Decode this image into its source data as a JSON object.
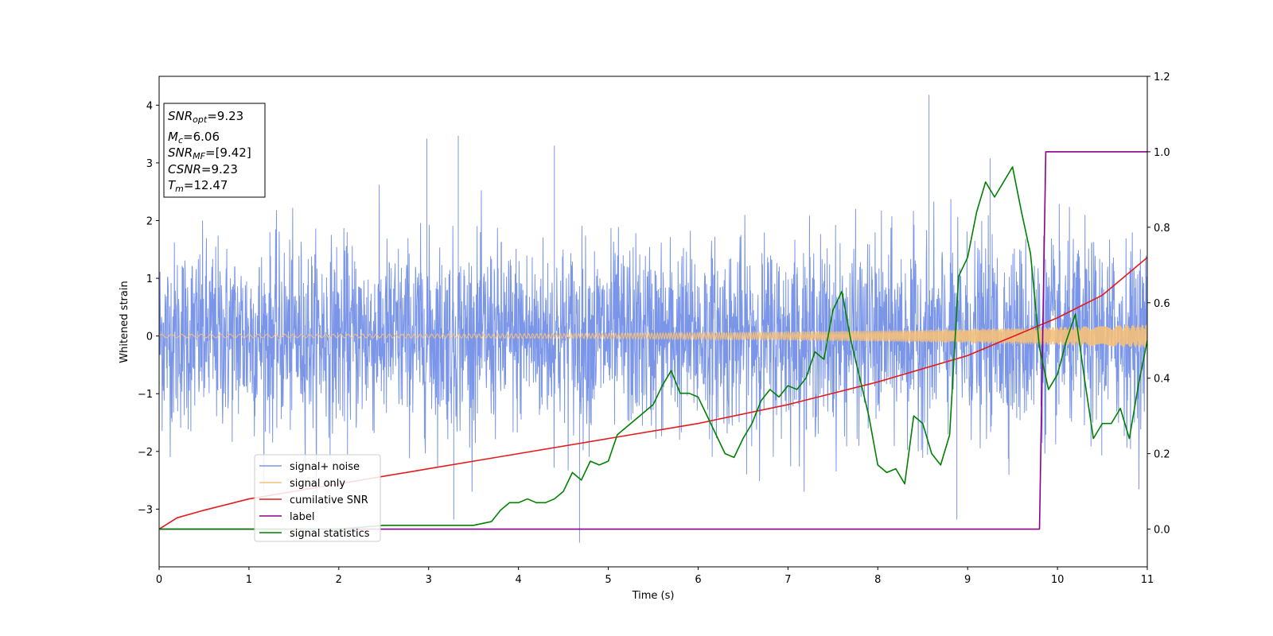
{
  "chart_data": {
    "type": "line",
    "xlabel": "Time (s)",
    "ylabel": "Whitened strain",
    "xlim": [
      0,
      11
    ],
    "ylim_left": [
      -4,
      4.5
    ],
    "ylim_right": [
      -0.1,
      1.2
    ],
    "xticks": [
      "0",
      "1",
      "2",
      "3",
      "4",
      "5",
      "6",
      "7",
      "8",
      "9",
      "10",
      "11"
    ],
    "yticks_left": [
      "−3",
      "−2",
      "−1",
      "0",
      "1",
      "2",
      "3",
      "4"
    ],
    "yticks_right": [
      "0.0",
      "0.2",
      "0.4",
      "0.6",
      "0.8",
      "1.0",
      "1.2"
    ],
    "grid": false,
    "legend_position": "lower-left",
    "annotation": {
      "snr_opt": {
        "base": "SNR",
        "sub": "opt",
        "value": "=9.23"
      },
      "mc": {
        "base": "M",
        "sub": "c",
        "value": "=6.06"
      },
      "snr_mf": {
        "base": "SNR",
        "sub": "MF",
        "value": "=[9.42]"
      },
      "csnr": {
        "base": "CSNR",
        "value": "=9.23"
      },
      "tm": {
        "base": "T",
        "sub": "m",
        "value": "=12.47"
      }
    },
    "series": [
      {
        "name": "signal+ noise",
        "color": "#7b96e8",
        "axis": "left",
        "description_type": "noise",
        "std": 0.8,
        "spikes": [
          [
            8.57,
            4.18
          ],
          [
            4.68,
            -3.58
          ],
          [
            2.98,
            3.42
          ],
          [
            3.33,
            3.47
          ],
          [
            8.88,
            -3.18
          ],
          [
            3.28,
            -3.18
          ],
          [
            9.25,
            3.08
          ],
          [
            4.4,
            3.3
          ]
        ]
      },
      {
        "name": "signal only",
        "color": "#f5c07a",
        "axis": "left",
        "amplitude_start": 0.03,
        "amplitude_end": 0.2
      },
      {
        "name": "cumilative SNR",
        "color": "#e41a1c",
        "axis": "right",
        "x": [
          0,
          0.2,
          0.5,
          1,
          1.5,
          2,
          3,
          4,
          5,
          6,
          7,
          8,
          9,
          9.5,
          10,
          10.5,
          11
        ],
        "y": [
          0.0,
          0.03,
          0.05,
          0.08,
          0.1,
          0.12,
          0.16,
          0.2,
          0.24,
          0.28,
          0.33,
          0.39,
          0.46,
          0.51,
          0.56,
          0.62,
          0.72
        ]
      },
      {
        "name": "label",
        "color": "#8b008b",
        "axis": "right",
        "x": [
          0,
          9.8,
          9.87,
          11
        ],
        "y": [
          0,
          0,
          1,
          1
        ]
      },
      {
        "name": "signal statistics",
        "color": "#008000",
        "axis": "right",
        "x": [
          0,
          1,
          2,
          2.5,
          3,
          3.3,
          3.5,
          3.7,
          3.8,
          3.9,
          4.0,
          4.1,
          4.2,
          4.3,
          4.4,
          4.5,
          4.6,
          4.7,
          4.8,
          4.9,
          5.0,
          5.1,
          5.2,
          5.3,
          5.4,
          5.5,
          5.6,
          5.7,
          5.8,
          5.9,
          6.0,
          6.1,
          6.2,
          6.3,
          6.4,
          6.5,
          6.6,
          6.7,
          6.8,
          6.9,
          7.0,
          7.1,
          7.2,
          7.3,
          7.4,
          7.5,
          7.6,
          7.7,
          7.8,
          7.9,
          8.0,
          8.1,
          8.2,
          8.3,
          8.4,
          8.5,
          8.6,
          8.7,
          8.8,
          8.9,
          9.0,
          9.1,
          9.2,
          9.3,
          9.4,
          9.5,
          9.6,
          9.7,
          9.8,
          9.9,
          10.0,
          10.1,
          10.2,
          10.3,
          10.4,
          10.5,
          10.6,
          10.7,
          10.8,
          10.9,
          11.0
        ],
        "y": [
          0.0,
          0.0,
          0.0,
          0.01,
          0.01,
          0.01,
          0.01,
          0.02,
          0.05,
          0.07,
          0.07,
          0.08,
          0.07,
          0.07,
          0.08,
          0.1,
          0.15,
          0.13,
          0.18,
          0.17,
          0.18,
          0.25,
          0.27,
          0.29,
          0.31,
          0.33,
          0.38,
          0.42,
          0.36,
          0.36,
          0.35,
          0.3,
          0.25,
          0.2,
          0.19,
          0.24,
          0.28,
          0.34,
          0.37,
          0.35,
          0.38,
          0.37,
          0.4,
          0.47,
          0.45,
          0.58,
          0.63,
          0.5,
          0.4,
          0.3,
          0.17,
          0.15,
          0.16,
          0.12,
          0.3,
          0.28,
          0.2,
          0.17,
          0.25,
          0.67,
          0.72,
          0.84,
          0.92,
          0.88,
          0.92,
          0.96,
          0.84,
          0.73,
          0.48,
          0.37,
          0.41,
          0.5,
          0.57,
          0.4,
          0.24,
          0.28,
          0.28,
          0.32,
          0.24,
          0.38,
          0.5
        ]
      }
    ]
  }
}
